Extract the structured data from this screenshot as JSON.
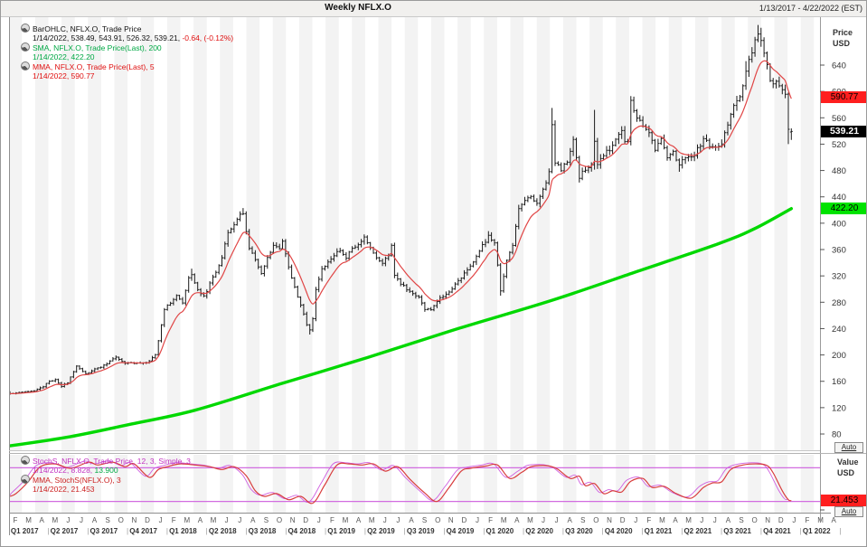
{
  "header": {
    "title": "Weekly NFLX.O",
    "date_range": "1/13/2017 - 4/22/2022 (EST)"
  },
  "legend_main": {
    "line1": "BarOHLC, NFLX.O, Trade Price",
    "line2_black": "1/14/2022, 538.49, 543.91, 526.32, 539.21,",
    "line2_red": "-0.64, (-0.12%)",
    "sma_label": "SMA, NFLX.O, Trade Price(Last), 200",
    "sma_value": "1/14/2022, 422.20",
    "mma_label": "MMA, NFLX.O, Trade Price(Last), 5",
    "mma_value": "1/14/2022, 590.77"
  },
  "legend_stoch": {
    "stoch_label": "StochS, NFLX.O, Trade Price, 12, 3, Simple, 3",
    "stoch_value_prefix": "1/14/2022, 8.828,",
    "stoch_value_green": "13.900",
    "mma_label": "MMA, StochS(NFLX.O), 3",
    "mma_value": "1/14/2022, 21.453"
  },
  "price_axis": {
    "title_line1": "Price",
    "title_line2": "USD",
    "auto_label": "Auto",
    "tags": [
      {
        "label": "590.77",
        "price": 590.77,
        "bg": "#ff1f1f",
        "fg": "#000000",
        "bold": false
      },
      {
        "label": "539.21",
        "price": 539.21,
        "bg": "#000000",
        "fg": "#ffffff",
        "bold": true
      },
      {
        "label": "422.20",
        "price": 422.2,
        "bg": "#00e300",
        "fg": "#000000",
        "bold": false
      }
    ]
  },
  "stoch_axis": {
    "title_line1": "Value",
    "title_line2": "USD",
    "auto_label": "Auto",
    "tag": {
      "label": "21.453",
      "value": 21.453,
      "bg": "#ff1f1f",
      "fg": "#000000"
    }
  },
  "x_axis": {
    "months": [
      "F",
      "M",
      "A",
      "M",
      "J",
      "J",
      "A",
      "S",
      "O",
      "N",
      "D",
      "J",
      "F",
      "M",
      "A",
      "M",
      "J",
      "J",
      "A",
      "S",
      "O",
      "N",
      "D",
      "J",
      "F",
      "M",
      "A",
      "M",
      "J",
      "J",
      "A",
      "S",
      "O",
      "N",
      "D",
      "J",
      "F",
      "M",
      "A",
      "M",
      "J",
      "J",
      "A",
      "S",
      "O",
      "N",
      "D",
      "J",
      "F",
      "M",
      "A",
      "M",
      "J",
      "J",
      "A",
      "S",
      "O",
      "N",
      "D",
      "J",
      "F",
      "M",
      "A"
    ],
    "quarters": [
      "Q1 2017",
      "Q2 2017",
      "Q3 2017",
      "Q4 2017",
      "Q1 2018",
      "Q2 2018",
      "Q3 2018",
      "Q4 2018",
      "Q1 2019",
      "Q2 2019",
      "Q3 2019",
      "Q4 2019",
      "Q1 2020",
      "Q2 2020",
      "Q3 2020",
      "Q4 2020",
      "Q1 2021",
      "Q2 2021",
      "Q3 2021",
      "Q4 2021",
      "Q1 2022"
    ],
    "separator": "|"
  },
  "chart_data": {
    "type": "ohlc",
    "title": "Weekly NFLX.O",
    "symbol": "NFLX.O",
    "interval": "Weekly",
    "x_range": [
      "1/13/2017",
      "4/22/2022"
    ],
    "ylim": [
      60,
      706
    ],
    "price_ticks": [
      640,
      600,
      560,
      520,
      480,
      440,
      400,
      360,
      320,
      280,
      240,
      200,
      160,
      120,
      80
    ],
    "weeks_total": 259,
    "grid": "alternating-month-stripes",
    "last_bar": {
      "date": "1/14/2022",
      "open": 538.49,
      "high": 543.91,
      "low": 526.32,
      "close": 539.21,
      "change": -0.64,
      "change_pct": "-0.12%"
    },
    "series": [
      {
        "name": "BarOHLC NFLX.O Trade Price",
        "type": "ohlc",
        "color": "#1a1a1a",
        "close_anchors": [
          [
            0,
            141
          ],
          [
            4,
            144
          ],
          [
            8,
            146
          ],
          [
            11,
            152
          ],
          [
            13,
            160
          ],
          [
            15,
            163
          ],
          [
            17,
            152
          ],
          [
            19,
            158
          ],
          [
            22,
            184
          ],
          [
            25,
            171
          ],
          [
            28,
            178
          ],
          [
            31,
            184
          ],
          [
            35,
            197
          ],
          [
            38,
            187
          ],
          [
            41,
            188
          ],
          [
            44,
            187
          ],
          [
            46,
            190
          ],
          [
            48,
            201
          ],
          [
            49,
            221
          ],
          [
            51,
            270
          ],
          [
            53,
            280
          ],
          [
            55,
            290
          ],
          [
            57,
            278
          ],
          [
            59,
            316
          ],
          [
            60,
            321
          ],
          [
            62,
            300
          ],
          [
            64,
            288
          ],
          [
            66,
            308
          ],
          [
            68,
            326
          ],
          [
            70,
            348
          ],
          [
            72,
            388
          ],
          [
            74,
            398
          ],
          [
            76,
            412
          ],
          [
            77,
            416
          ],
          [
            79,
            362
          ],
          [
            81,
            344
          ],
          [
            83,
            322
          ],
          [
            85,
            348
          ],
          [
            87,
            366
          ],
          [
            89,
            360
          ],
          [
            90,
            374
          ],
          [
            92,
            332
          ],
          [
            94,
            302
          ],
          [
            96,
            276
          ],
          [
            98,
            246
          ],
          [
            99,
            238
          ],
          [
            100,
            256
          ],
          [
            101,
            298
          ],
          [
            103,
            330
          ],
          [
            105,
            340
          ],
          [
            107,
            352
          ],
          [
            109,
            358
          ],
          [
            111,
            348
          ],
          [
            113,
            362
          ],
          [
            115,
            366
          ],
          [
            117,
            378
          ],
          [
            119,
            362
          ],
          [
            121,
            348
          ],
          [
            123,
            338
          ],
          [
            125,
            352
          ],
          [
            126,
            366
          ],
          [
            127,
            322
          ],
          [
            129,
            308
          ],
          [
            131,
            300
          ],
          [
            133,
            292
          ],
          [
            135,
            288
          ],
          [
            137,
            270
          ],
          [
            139,
            268
          ],
          [
            140,
            276
          ],
          [
            142,
            286
          ],
          [
            144,
            292
          ],
          [
            146,
            302
          ],
          [
            148,
            312
          ],
          [
            150,
            324
          ],
          [
            151,
            330
          ],
          [
            152,
            336
          ],
          [
            154,
            348
          ],
          [
            156,
            366
          ],
          [
            158,
            380
          ],
          [
            160,
            368
          ],
          [
            161,
            336
          ],
          [
            162,
            298
          ],
          [
            164,
            342
          ],
          [
            166,
            368
          ],
          [
            168,
            420
          ],
          [
            170,
            436
          ],
          [
            172,
            440
          ],
          [
            174,
            430
          ],
          [
            176,
            452
          ],
          [
            178,
            476
          ],
          [
            179,
            548
          ],
          [
            180,
            492
          ],
          [
            182,
            482
          ],
          [
            184,
            494
          ],
          [
            186,
            524
          ],
          [
            188,
            470
          ],
          [
            190,
            482
          ],
          [
            192,
            488
          ],
          [
            193,
            525
          ],
          [
            194,
            488
          ],
          [
            196,
            504
          ],
          [
            198,
            512
          ],
          [
            200,
            530
          ],
          [
            202,
            538
          ],
          [
            203,
            524
          ],
          [
            204,
            522
          ],
          [
            205,
            586
          ],
          [
            207,
            560
          ],
          [
            209,
            548
          ],
          [
            211,
            540
          ],
          [
            213,
            512
          ],
          [
            215,
            528
          ],
          [
            217,
            502
          ],
          [
            219,
            508
          ],
          [
            221,
            488
          ],
          [
            223,
            502
          ],
          [
            225,
            498
          ],
          [
            227,
            512
          ],
          [
            229,
            528
          ],
          [
            231,
            518
          ],
          [
            233,
            516
          ],
          [
            235,
            522
          ],
          [
            237,
            550
          ],
          [
            239,
            582
          ],
          [
            241,
            590
          ],
          [
            243,
            628
          ],
          [
            245,
            662
          ],
          [
            247,
            690
          ],
          [
            249,
            658
          ],
          [
            251,
            616
          ],
          [
            253,
            612
          ],
          [
            255,
            602
          ],
          [
            256,
            597
          ],
          [
            257,
            540
          ],
          [
            258,
            539.21
          ]
        ],
        "spike_highs": [
          [
            60,
            331
          ],
          [
            77,
            423
          ],
          [
            158,
            388
          ],
          [
            179,
            575
          ],
          [
            193,
            572
          ],
          [
            205,
            593
          ],
          [
            243,
            646
          ],
          [
            247,
            701
          ]
        ],
        "spike_lows": [
          [
            99,
            231
          ],
          [
            162,
            290
          ],
          [
            221,
            478
          ],
          [
            257,
            520
          ]
        ]
      },
      {
        "name": "SMA 200",
        "type": "line",
        "color": "#00d800",
        "width": 3.4,
        "last": 422.2,
        "anchors": [
          [
            0,
            62
          ],
          [
            20,
            76
          ],
          [
            40,
            95
          ],
          [
            61,
            116
          ],
          [
            90,
            157
          ],
          [
            118,
            196
          ],
          [
            148,
            240
          ],
          [
            179,
            283
          ],
          [
            206,
            325
          ],
          [
            234,
            369
          ],
          [
            246,
            392
          ],
          [
            258,
            422.2
          ]
        ]
      },
      {
        "name": "MMA 5",
        "type": "line",
        "color": "#e04545",
        "width": 1.2,
        "period": 5,
        "last": 590.77
      }
    ],
    "stochastic": {
      "name": "StochS 12,3,Simple,3 with MMA 3",
      "range": [
        0,
        100
      ],
      "bands": [
        20,
        80
      ],
      "band_color": "#d26ce0",
      "line_color": "#d83d3d",
      "k_color": "#cf5fe0",
      "last": {
        "stoch_k": 8.828,
        "stoch_d": 13.9,
        "mma": 21.453
      },
      "mma_anchors": [
        [
          0,
          29
        ],
        [
          2,
          34
        ],
        [
          6,
          55
        ],
        [
          10,
          82
        ],
        [
          15,
          87
        ],
        [
          20,
          79
        ],
        [
          26,
          90
        ],
        [
          29,
          85
        ],
        [
          34,
          90
        ],
        [
          38,
          82
        ],
        [
          41,
          87
        ],
        [
          46,
          63
        ],
        [
          49,
          77
        ],
        [
          52,
          82
        ],
        [
          56,
          87
        ],
        [
          61,
          85
        ],
        [
          66,
          82
        ],
        [
          70,
          77
        ],
        [
          74,
          82
        ],
        [
          78,
          66
        ],
        [
          81,
          39
        ],
        [
          84,
          29
        ],
        [
          88,
          34
        ],
        [
          92,
          23
        ],
        [
          96,
          29
        ],
        [
          100,
          17
        ],
        [
          104,
          50
        ],
        [
          108,
          85
        ],
        [
          112,
          87
        ],
        [
          116,
          85
        ],
        [
          120,
          87
        ],
        [
          124,
          74
        ],
        [
          128,
          82
        ],
        [
          132,
          60
        ],
        [
          137,
          35
        ],
        [
          141,
          20
        ],
        [
          145,
          45
        ],
        [
          149,
          74
        ],
        [
          152,
          79
        ],
        [
          157,
          83
        ],
        [
          161,
          85
        ],
        [
          165,
          61
        ],
        [
          169,
          72
        ],
        [
          172,
          82
        ],
        [
          176,
          84
        ],
        [
          179,
          82
        ],
        [
          181,
          77
        ],
        [
          185,
          61
        ],
        [
          188,
          65
        ],
        [
          190,
          48
        ],
        [
          193,
          52
        ],
        [
          196,
          34
        ],
        [
          199,
          39
        ],
        [
          202,
          37
        ],
        [
          205,
          56
        ],
        [
          209,
          61
        ],
        [
          212,
          45
        ],
        [
          216,
          47
        ],
        [
          220,
          34
        ],
        [
          225,
          26
        ],
        [
          229,
          45
        ],
        [
          232,
          53
        ],
        [
          235,
          55
        ],
        [
          238,
          77
        ],
        [
          242,
          85
        ],
        [
          247,
          87
        ],
        [
          250,
          84
        ],
        [
          252,
          71
        ],
        [
          255,
          39
        ],
        [
          257,
          23
        ],
        [
          258,
          21.45
        ]
      ]
    }
  }
}
